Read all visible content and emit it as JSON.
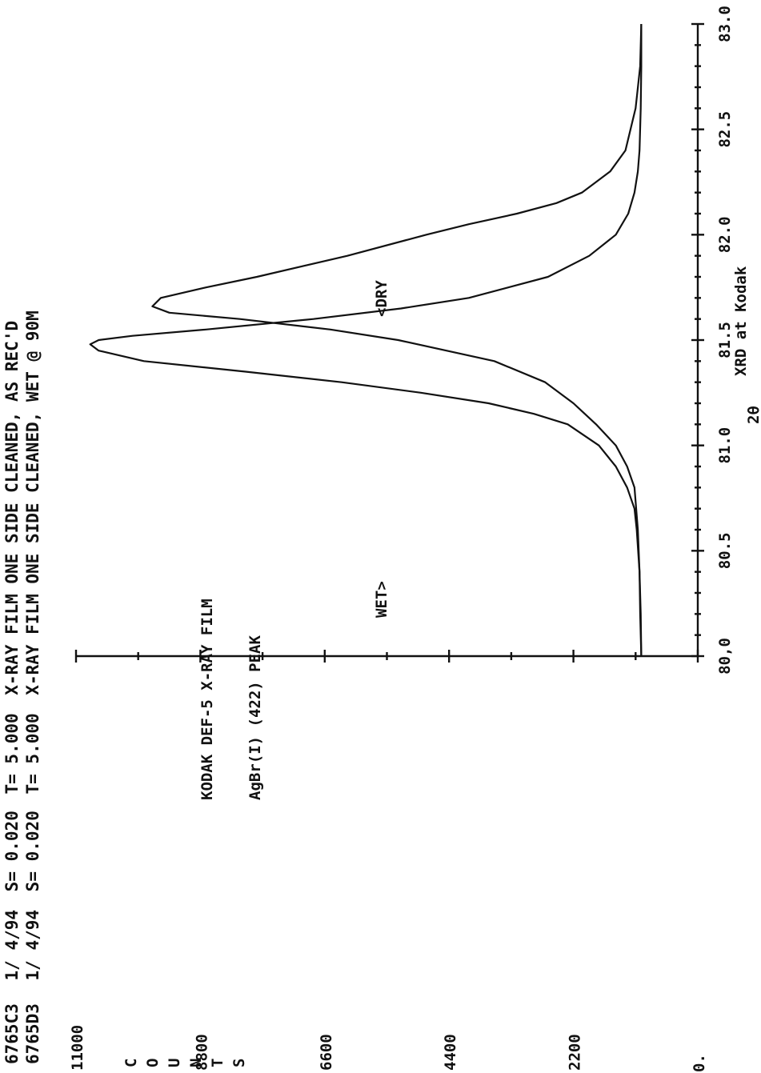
{
  "header": {
    "lines": [
      {
        "id": "6765C3",
        "date": "1/ 4/94",
        "step": "S=  0.020",
        "time": "T= 5.000",
        "description": "X-RAY FILM ONE SIDE CLEANED, AS REC'D"
      },
      {
        "id": "6765D3",
        "date": "1/ 4/94",
        "step": "S=  0.020",
        "time": "T= 5.000",
        "description": "X-RAY FILM ONE SIDE CLEANED, WET @  90M"
      }
    ]
  },
  "annotations": {
    "title": "KODAK DEF-5 X-RAY FILM",
    "subtitle": "AgBr(I)  (422) PEAK",
    "wet_label": "WET>",
    "dry_label": "<DRY"
  },
  "colors": {
    "ink": "#111111",
    "background": "#ffffff"
  },
  "chart_data": {
    "type": "line",
    "orientation": "rotated-90-clockwise",
    "title": "KODAK DEF-5 X-RAY FILM",
    "subtitle": "AgBr(I)  (422) PEAK",
    "xlabel": "2θ",
    "ylabel": "COUNTS",
    "footer": "XRD at Kodak",
    "xlim": [
      80.0,
      83.0
    ],
    "ylim": [
      0,
      11000
    ],
    "x_ticks": [
      "80,0",
      "80.5",
      "81.0",
      "81.5",
      "82.0",
      "82.5",
      "83.0"
    ],
    "y_ticks": [
      "0.",
      "2200",
      "4400",
      "6600",
      "8800",
      "11000"
    ],
    "y_tick_values": [
      0,
      2200,
      4400,
      6600,
      8800,
      11000
    ],
    "grid": false,
    "series": [
      {
        "name": "WET",
        "x": [
          80.0,
          80.2,
          80.4,
          80.6,
          80.7,
          80.8,
          80.9,
          81.0,
          81.1,
          81.15,
          81.2,
          81.25,
          81.3,
          81.35,
          81.4,
          81.45,
          81.48,
          81.5,
          81.52,
          81.55,
          81.6,
          81.65,
          81.7,
          81.8,
          81.9,
          82.0,
          82.1,
          82.2,
          82.3,
          82.4,
          82.6,
          82.8,
          83.0
        ],
        "y": [
          1000,
          1020,
          1030,
          1080,
          1120,
          1250,
          1450,
          1750,
          2300,
          2900,
          3700,
          4900,
          6300,
          8000,
          9800,
          10600,
          10750,
          10600,
          10000,
          8700,
          6800,
          5250,
          4050,
          2650,
          1920,
          1450,
          1230,
          1120,
          1060,
          1030,
          1010,
          1000,
          1000
        ]
      },
      {
        "name": "DRY",
        "x": [
          80.0,
          80.2,
          80.4,
          80.6,
          80.8,
          80.9,
          81.0,
          81.1,
          81.2,
          81.3,
          81.4,
          81.5,
          81.55,
          81.6,
          81.63,
          81.66,
          81.7,
          81.75,
          81.8,
          81.85,
          81.9,
          82.0,
          82.05,
          82.1,
          82.15,
          82.2,
          82.3,
          82.4,
          82.6,
          82.8,
          83.0
        ],
        "y": [
          1000,
          1010,
          1030,
          1060,
          1120,
          1250,
          1450,
          1800,
          2200,
          2700,
          3600,
          5300,
          6500,
          8100,
          9350,
          9650,
          9500,
          8700,
          7800,
          7000,
          6200,
          4800,
          4050,
          3200,
          2500,
          2050,
          1550,
          1280,
          1100,
          1020,
          1000
        ]
      }
    ]
  }
}
